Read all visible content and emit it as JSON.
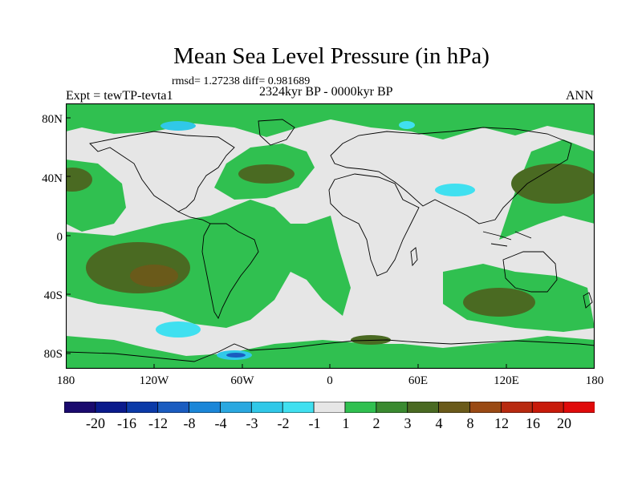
{
  "title": "Mean Sea Level Pressure (in hPa)",
  "stats": "rmsd= 1.27238 diff= 0.981689",
  "period": "2324kyr BP - 0000kyr BP",
  "experiment": "Expt = tewTP-tevta1",
  "season": "ANN",
  "lat_labels": [
    "80N",
    "40N",
    "0",
    "40S",
    "80S"
  ],
  "lon_labels": [
    "180",
    "120W",
    "60W",
    "0",
    "60E",
    "120E",
    "180"
  ],
  "colorbar": {
    "labels": [
      "-20",
      "-16",
      "-12",
      "-8",
      "-4",
      "-3",
      "-2",
      "-1",
      "1",
      "2",
      "3",
      "4",
      "8",
      "12",
      "16",
      "20"
    ],
    "colors": [
      "#1a0a6e",
      "#0a1a8c",
      "#0b3aa8",
      "#1a5cc0",
      "#1a86d8",
      "#2aa8e0",
      "#30c8e8",
      "#40e0f0",
      "#e6e6e6",
      "#30c050",
      "#3a8a30",
      "#4a6a22",
      "#6a5a1a",
      "#9a4a14",
      "#b82a10",
      "#c81a0a",
      "#e00a0a"
    ]
  }
}
